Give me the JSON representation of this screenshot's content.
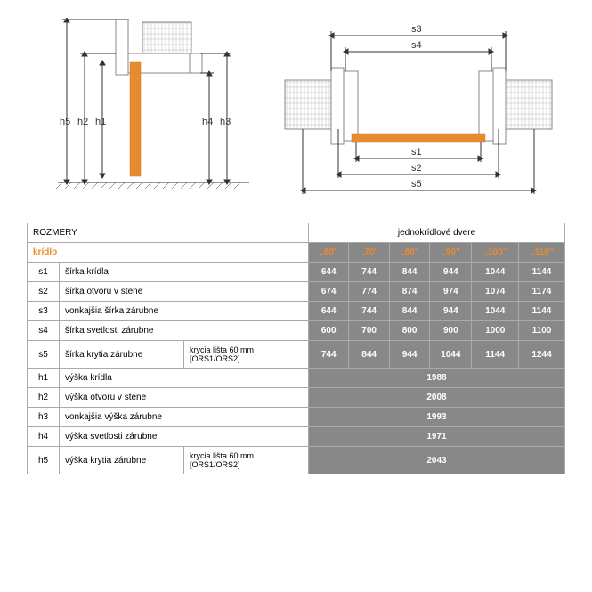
{
  "header": {
    "rozmery": "ROZMERY",
    "right_title": "jednokrídlové dvere",
    "kridlo": "krídlo"
  },
  "sizes": [
    "„60\"",
    "„70\"",
    "„80\"",
    "„90\"",
    "„100\"",
    "„110\""
  ],
  "rows_s": [
    {
      "code": "s1",
      "label": "šírka krídla",
      "extra": "",
      "values": [
        "644",
        "744",
        "844",
        "944",
        "1044",
        "1144"
      ]
    },
    {
      "code": "s2",
      "label": "šírka otvoru v stene",
      "extra": "",
      "values": [
        "674",
        "774",
        "874",
        "974",
        "1074",
        "1174"
      ]
    },
    {
      "code": "s3",
      "label": "vonkajšia šírka zárubne",
      "extra": "",
      "values": [
        "644",
        "744",
        "844",
        "944",
        "1044",
        "1144"
      ]
    },
    {
      "code": "s4",
      "label": "šírka svetlosti zárubne",
      "extra": "",
      "values": [
        "600",
        "700",
        "800",
        "900",
        "1000",
        "1100"
      ]
    },
    {
      "code": "s5",
      "label": "šírka krytia zárubne",
      "extra": "krycia lišta 60 mm [ORS1/ORS2]",
      "values": [
        "744",
        "844",
        "944",
        "1044",
        "1144",
        "1244"
      ]
    }
  ],
  "rows_h": [
    {
      "code": "h1",
      "label": "výška krídla",
      "extra": "",
      "value": "1988"
    },
    {
      "code": "h2",
      "label": "výška otvoru v stene",
      "extra": "",
      "value": "2008"
    },
    {
      "code": "h3",
      "label": "vonkajšia výška zárubne",
      "extra": "",
      "value": "1993"
    },
    {
      "code": "h4",
      "label": "výška svetlosti zárubne",
      "extra": "",
      "value": "1971"
    },
    {
      "code": "h5",
      "label": "výška krytia zárubne",
      "extra": "krycia lišta 60 mm [ORS1/ORS2]",
      "value": "2043"
    }
  ],
  "diagram": {
    "left_labels": [
      "h5",
      "h2",
      "h1",
      "h4",
      "h3"
    ],
    "right_labels_top": [
      "s3",
      "s4"
    ],
    "right_labels_bottom": [
      "s1",
      "s2",
      "s5"
    ]
  },
  "colors": {
    "door": "#e88b2e",
    "table_value_bg": "#888888",
    "border": "#aaaaaa"
  }
}
